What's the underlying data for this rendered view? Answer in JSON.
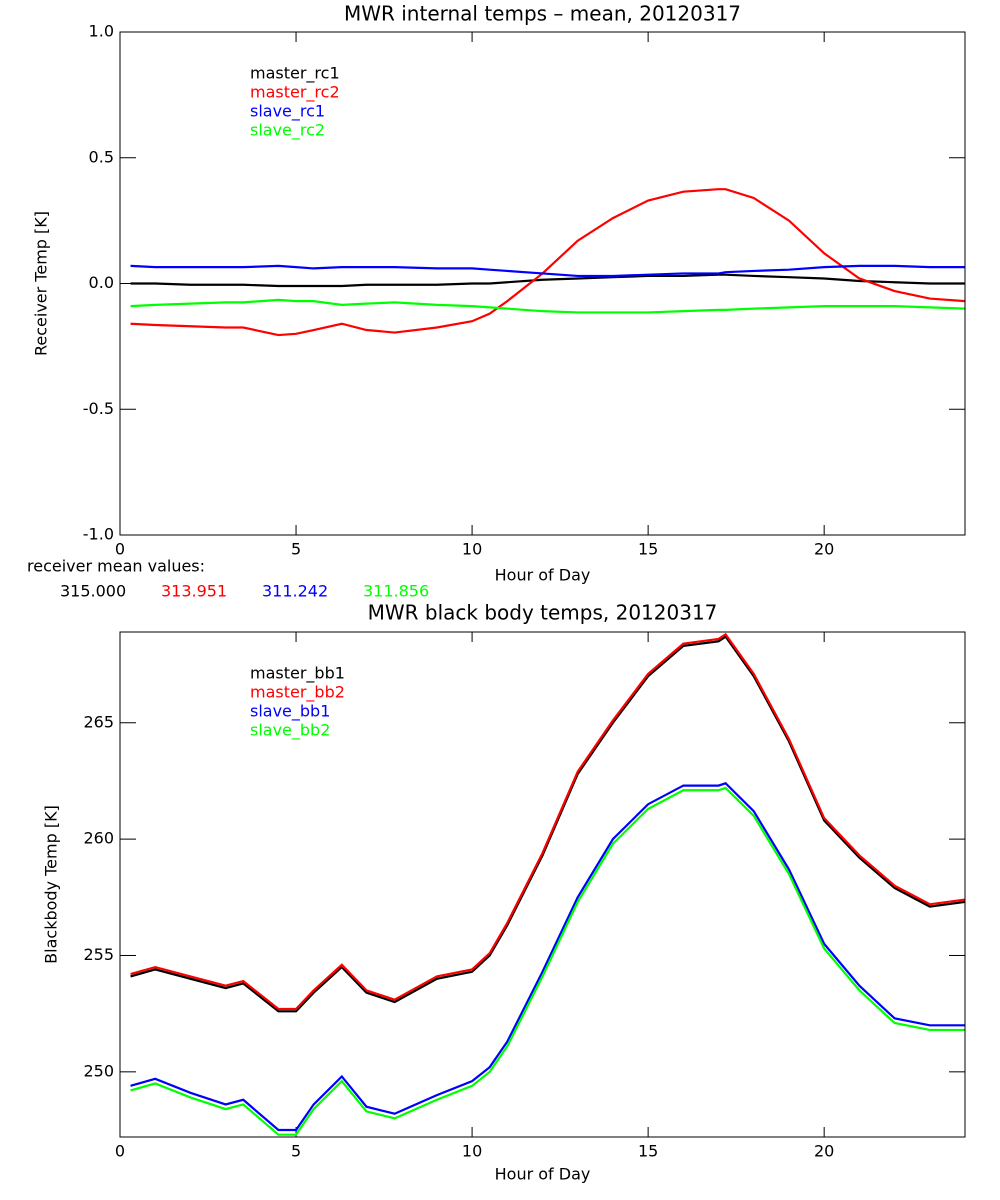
{
  "chart_data": [
    {
      "type": "line",
      "title": "MWR internal temps – mean, 20120317",
      "x_label": "Hour of Day",
      "y_label": "Receiver Temp [K]",
      "x": [
        0.3,
        1,
        2,
        3,
        3.5,
        4.5,
        5,
        5.5,
        6.3,
        7,
        7.8,
        9,
        10,
        10.5,
        11,
        12,
        13,
        14,
        15,
        16,
        17,
        17.2,
        18,
        19,
        20,
        21,
        22,
        23,
        24
      ],
      "series": [
        {
          "name": "master_rc1",
          "color": "#000000",
          "values": [
            0,
            0,
            -0.005,
            -0.005,
            -0.005,
            -0.01,
            -0.01,
            -0.01,
            -0.01,
            -0.005,
            -0.005,
            -0.005,
            0,
            0,
            0.005,
            0.015,
            0.02,
            0.025,
            0.03,
            0.03,
            0.035,
            0.035,
            0.03,
            0.025,
            0.02,
            0.01,
            0.005,
            0,
            0
          ]
        },
        {
          "name": "master_rc2",
          "color": "#ff0000",
          "values": [
            -0.16,
            -0.165,
            -0.17,
            -0.175,
            -0.175,
            -0.205,
            -0.2,
            -0.185,
            -0.16,
            -0.185,
            -0.195,
            -0.175,
            -0.15,
            -0.12,
            -0.07,
            0.04,
            0.17,
            0.26,
            0.33,
            0.365,
            0.375,
            0.375,
            0.34,
            0.25,
            0.12,
            0.02,
            -0.03,
            -0.06,
            -0.07
          ]
        },
        {
          "name": "slave_rc1",
          "color": "#0000ff",
          "values": [
            0.07,
            0.065,
            0.065,
            0.065,
            0.065,
            0.07,
            0.065,
            0.06,
            0.065,
            0.065,
            0.065,
            0.06,
            0.06,
            0.055,
            0.05,
            0.04,
            0.03,
            0.03,
            0.035,
            0.04,
            0.04,
            0.045,
            0.05,
            0.055,
            0.065,
            0.07,
            0.07,
            0.065,
            0.065
          ]
        },
        {
          "name": "slave_rc2",
          "color": "#00ff00",
          "values": [
            -0.09,
            -0.085,
            -0.08,
            -0.075,
            -0.075,
            -0.065,
            -0.07,
            -0.07,
            -0.085,
            -0.08,
            -0.075,
            -0.085,
            -0.09,
            -0.095,
            -0.1,
            -0.11,
            -0.115,
            -0.115,
            -0.115,
            -0.11,
            -0.105,
            -0.105,
            -0.1,
            -0.095,
            -0.09,
            -0.09,
            -0.09,
            -0.095,
            -0.1
          ]
        }
      ],
      "xlim": [
        0,
        24
      ],
      "xticks": [
        0,
        5,
        10,
        15,
        20
      ],
      "ylim": [
        -1,
        1
      ],
      "yticks": [
        {
          "value": -1,
          "label": "-1.0"
        },
        {
          "value": -0.5,
          "label": "-0.5"
        },
        {
          "value": 0,
          "label": "0.0"
        },
        {
          "value": 0.5,
          "label": "0.5"
        },
        {
          "value": 1,
          "label": "1.0"
        }
      ],
      "annotation": "receiver mean values:",
      "mean_values": [
        "315.000",
        "313.951",
        "311.242",
        "311.856"
      ]
    },
    {
      "type": "line",
      "title": "MWR black body temps, 20120317",
      "x_label": "Hour of Day",
      "y_label": "Blackbody Temp [K]",
      "x": [
        0.3,
        1,
        2,
        3,
        3.5,
        4.5,
        5,
        5.5,
        6.3,
        7,
        7.8,
        9,
        10,
        10.5,
        11,
        12,
        13,
        14,
        15,
        16,
        17,
        17.2,
        18,
        19,
        20,
        21,
        22,
        23,
        24
      ],
      "series": [
        {
          "name": "master_bb1",
          "color": "#000000",
          "values": [
            254.1,
            254.4,
            254.0,
            253.6,
            253.8,
            252.6,
            252.6,
            253.4,
            254.5,
            253.4,
            253.0,
            254.0,
            254.3,
            255.0,
            256.3,
            259.3,
            262.8,
            265.0,
            267.0,
            268.3,
            268.5,
            268.7,
            267.0,
            264.2,
            260.8,
            259.2,
            257.9,
            257.1,
            257.3
          ]
        },
        {
          "name": "master_bb2",
          "color": "#ff0000",
          "values": [
            254.2,
            254.5,
            254.1,
            253.7,
            253.9,
            252.7,
            252.7,
            253.5,
            254.6,
            253.5,
            253.1,
            254.1,
            254.4,
            255.1,
            256.4,
            259.4,
            262.9,
            265.1,
            267.1,
            268.4,
            268.6,
            268.8,
            267.1,
            264.3,
            260.9,
            259.3,
            258.0,
            257.2,
            257.4
          ]
        },
        {
          "name": "slave_bb1",
          "color": "#0000ff",
          "values": [
            249.4,
            249.7,
            249.1,
            248.6,
            248.8,
            247.5,
            247.5,
            248.6,
            249.8,
            248.5,
            248.2,
            249.0,
            249.6,
            250.2,
            251.3,
            254.3,
            257.5,
            260.0,
            261.5,
            262.3,
            262.3,
            262.4,
            261.2,
            258.7,
            255.5,
            253.7,
            252.3,
            252.0,
            252.0
          ]
        },
        {
          "name": "slave_bb2",
          "color": "#00ff00",
          "values": [
            249.2,
            249.5,
            248.9,
            248.4,
            248.6,
            247.3,
            247.3,
            248.4,
            249.6,
            248.3,
            248.0,
            248.8,
            249.4,
            250.0,
            251.1,
            254.1,
            257.3,
            259.8,
            261.3,
            262.1,
            262.1,
            262.2,
            261.0,
            258.5,
            255.3,
            253.5,
            252.1,
            251.8,
            251.8
          ]
        }
      ],
      "xlim": [
        0,
        24
      ],
      "xticks": [
        0,
        5,
        10,
        15,
        20
      ],
      "ylim": [
        247.2,
        268.9
      ],
      "yticks": [
        250,
        255,
        260,
        265
      ]
    }
  ]
}
